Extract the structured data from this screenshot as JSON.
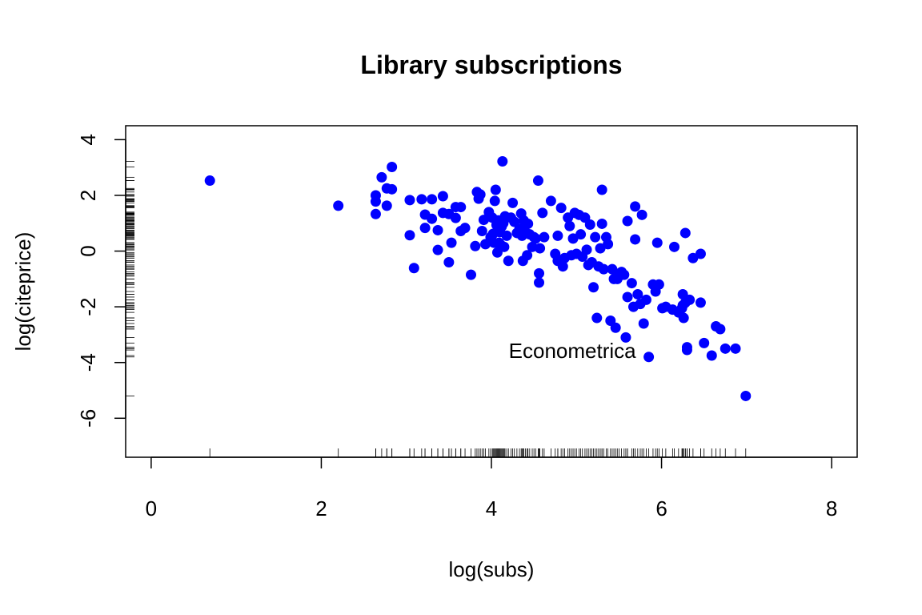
{
  "chart_data": {
    "type": "scatter",
    "title": "Library subscriptions",
    "xlabel": "log(subs)",
    "ylabel": "log(citeprice)",
    "xlim": [
      -0.3,
      8.3
    ],
    "ylim": [
      -7.4,
      4.5
    ],
    "xticks": [
      0,
      2,
      4,
      6,
      8
    ],
    "yticks": [
      -6,
      -4,
      -2,
      0,
      2,
      4
    ],
    "rug": true,
    "point_color": "#0000FF",
    "annotations": [
      {
        "text": "Econometrica",
        "x": 5.85,
        "y": -3.8
      }
    ],
    "points": [
      [
        0.69,
        2.53
      ],
      [
        2.2,
        1.63
      ],
      [
        2.64,
        2.0
      ],
      [
        2.64,
        1.78
      ],
      [
        2.64,
        1.33
      ],
      [
        2.71,
        2.65
      ],
      [
        2.77,
        2.25
      ],
      [
        2.77,
        1.63
      ],
      [
        2.83,
        3.02
      ],
      [
        2.83,
        2.22
      ],
      [
        3.04,
        1.83
      ],
      [
        3.04,
        0.57
      ],
      [
        3.09,
        -0.61
      ],
      [
        3.18,
        1.86
      ],
      [
        3.22,
        1.31
      ],
      [
        3.22,
        0.83
      ],
      [
        3.3,
        1.86
      ],
      [
        3.3,
        1.16
      ],
      [
        3.37,
        0.75
      ],
      [
        3.37,
        0.04
      ],
      [
        3.43,
        1.97
      ],
      [
        3.43,
        1.37
      ],
      [
        3.5,
        1.33
      ],
      [
        3.5,
        -0.4
      ],
      [
        3.53,
        0.3
      ],
      [
        3.58,
        1.58
      ],
      [
        3.58,
        1.19
      ],
      [
        3.64,
        1.58
      ],
      [
        3.64,
        0.72
      ],
      [
        3.69,
        0.83
      ],
      [
        3.76,
        -0.85
      ],
      [
        3.81,
        0.18
      ],
      [
        3.83,
        2.12
      ],
      [
        3.85,
        1.88
      ],
      [
        3.87,
        2.03
      ],
      [
        3.89,
        0.72
      ],
      [
        3.91,
        1.12
      ],
      [
        3.93,
        0.25
      ],
      [
        3.97,
        1.4
      ],
      [
        3.99,
        0.5
      ],
      [
        4.01,
        1.2
      ],
      [
        4.02,
        0.62
      ],
      [
        4.03,
        0.3
      ],
      [
        4.04,
        1.8
      ],
      [
        4.05,
        2.2
      ],
      [
        4.06,
        0.94
      ],
      [
        4.07,
        -0.05
      ],
      [
        4.08,
        1.1
      ],
      [
        4.09,
        0.3
      ],
      [
        4.1,
        0.68
      ],
      [
        4.11,
        0.22
      ],
      [
        4.12,
        0.88
      ],
      [
        4.13,
        3.22
      ],
      [
        4.14,
        1.0
      ],
      [
        4.15,
        0.15
      ],
      [
        4.16,
        1.25
      ],
      [
        4.18,
        0.55
      ],
      [
        4.2,
        -0.35
      ],
      [
        4.23,
        1.2
      ],
      [
        4.25,
        1.73
      ],
      [
        4.27,
        1.05
      ],
      [
        4.3,
        0.65
      ],
      [
        4.33,
        0.8
      ],
      [
        4.35,
        1.35
      ],
      [
        4.36,
        0.55
      ],
      [
        4.37,
        -0.35
      ],
      [
        4.38,
        1.1
      ],
      [
        4.4,
        0.68
      ],
      [
        4.42,
        -0.15
      ],
      [
        4.43,
        0.98
      ],
      [
        4.45,
        0.6
      ],
      [
        4.48,
        0.15
      ],
      [
        4.5,
        0.5
      ],
      [
        4.52,
        0.45
      ],
      [
        4.55,
        2.53
      ],
      [
        4.56,
        -0.8
      ],
      [
        4.56,
        -1.13
      ],
      [
        4.57,
        0.1
      ],
      [
        4.6,
        1.37
      ],
      [
        4.62,
        0.5
      ],
      [
        4.7,
        1.8
      ],
      [
        4.75,
        -0.1
      ],
      [
        4.78,
        0.55
      ],
      [
        4.78,
        -0.35
      ],
      [
        4.82,
        1.55
      ],
      [
        4.84,
        -0.55
      ],
      [
        4.86,
        -0.25
      ],
      [
        4.9,
        1.2
      ],
      [
        4.92,
        0.9
      ],
      [
        4.94,
        -0.15
      ],
      [
        4.96,
        0.45
      ],
      [
        4.98,
        1.37
      ],
      [
        5.0,
        -0.1
      ],
      [
        5.03,
        1.3
      ],
      [
        5.05,
        0.6
      ],
      [
        5.07,
        -0.2
      ],
      [
        5.1,
        1.2
      ],
      [
        5.12,
        0.05
      ],
      [
        5.14,
        -0.5
      ],
      [
        5.16,
        0.95
      ],
      [
        5.18,
        -0.4
      ],
      [
        5.2,
        -1.3
      ],
      [
        5.22,
        0.5
      ],
      [
        5.24,
        -2.4
      ],
      [
        5.26,
        -0.55
      ],
      [
        5.28,
        0.1
      ],
      [
        5.3,
        2.2
      ],
      [
        5.3,
        0.98
      ],
      [
        5.32,
        -0.65
      ],
      [
        5.35,
        0.5
      ],
      [
        5.37,
        0.25
      ],
      [
        5.4,
        -2.5
      ],
      [
        5.42,
        -0.65
      ],
      [
        5.44,
        -1.0
      ],
      [
        5.46,
        -2.75
      ],
      [
        5.48,
        -1.0
      ],
      [
        5.5,
        -0.9
      ],
      [
        5.53,
        -0.75
      ],
      [
        5.56,
        -0.85
      ],
      [
        5.58,
        -3.1
      ],
      [
        5.6,
        -1.65
      ],
      [
        5.6,
        1.08
      ],
      [
        5.65,
        -1.15
      ],
      [
        5.67,
        -2.0
      ],
      [
        5.69,
        0.42
      ],
      [
        5.69,
        1.6
      ],
      [
        5.72,
        -1.55
      ],
      [
        5.75,
        -1.9
      ],
      [
        5.77,
        1.3
      ],
      [
        5.79,
        -2.6
      ],
      [
        5.82,
        -1.75
      ],
      [
        5.85,
        -3.8
      ],
      [
        5.9,
        -1.2
      ],
      [
        5.93,
        -1.45
      ],
      [
        5.95,
        0.3
      ],
      [
        5.97,
        -1.2
      ],
      [
        6.01,
        -2.05
      ],
      [
        6.05,
        -2.0
      ],
      [
        6.13,
        -2.1
      ],
      [
        6.15,
        0.15
      ],
      [
        6.2,
        -2.2
      ],
      [
        6.24,
        -2.05
      ],
      [
        6.25,
        -1.55
      ],
      [
        6.25,
        -1.95
      ],
      [
        6.26,
        -2.4
      ],
      [
        6.28,
        0.65
      ],
      [
        6.28,
        -1.85
      ],
      [
        6.3,
        -3.45
      ],
      [
        6.3,
        -3.55
      ],
      [
        6.33,
        -1.75
      ],
      [
        6.37,
        -0.25
      ],
      [
        6.46,
        -0.1
      ],
      [
        6.46,
        -1.85
      ],
      [
        6.5,
        -3.3
      ],
      [
        6.59,
        -3.75
      ],
      [
        6.64,
        -2.7
      ],
      [
        6.69,
        -2.8
      ],
      [
        6.75,
        -3.5
      ],
      [
        6.87,
        -3.5
      ],
      [
        6.99,
        -5.2
      ]
    ]
  }
}
